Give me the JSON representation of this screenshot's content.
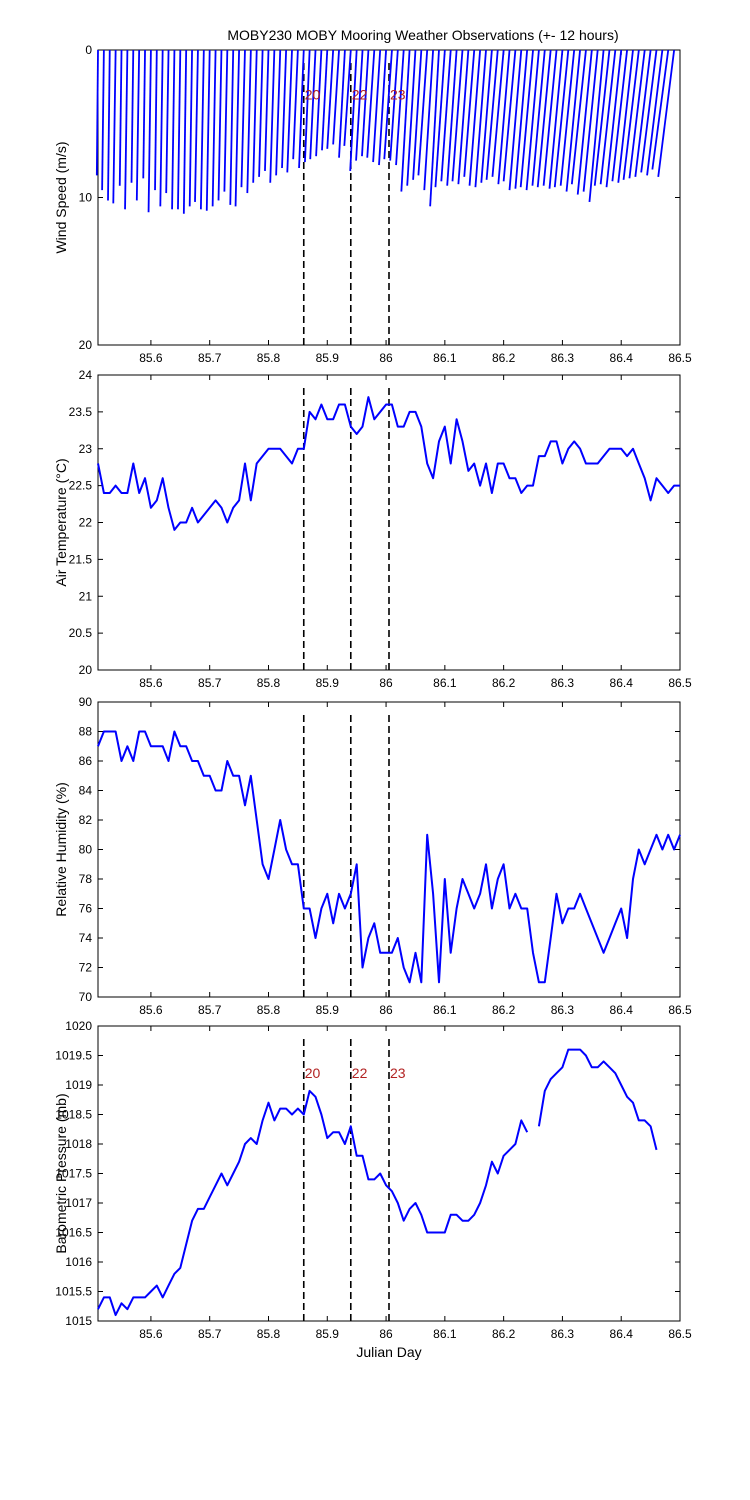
{
  "title": "MOBY230 MOBY Mooring Weather Observations (+- 12 hours)",
  "chart_data": [
    {
      "type": "line",
      "id": "wind",
      "ylabel": "Wind Speed (m/s)",
      "xlabel": "",
      "xlim": [
        85.51,
        86.5
      ],
      "ylim": [
        0,
        20
      ],
      "y_reversed": true,
      "yticks": [
        0,
        10,
        20
      ],
      "xticks": [
        85.6,
        85.7,
        85.8,
        85.9,
        86,
        86.1,
        86.2,
        86.3,
        86.4,
        86.5
      ],
      "vlines": [
        85.86,
        85.94,
        86.005
      ],
      "vline_labels": [
        "20",
        "22",
        "23"
      ],
      "label_y": 3,
      "series": [
        {
          "color": "#0000ff",
          "style": "wind-sticks",
          "x": [
            85.51,
            85.52,
            85.53,
            85.54,
            85.55,
            85.56,
            85.57,
            85.58,
            85.59,
            85.6,
            85.61,
            85.62,
            85.63,
            85.64,
            85.65,
            85.66,
            85.67,
            85.68,
            85.69,
            85.7,
            85.71,
            85.72,
            85.73,
            85.74,
            85.75,
            85.76,
            85.77,
            85.78,
            85.79,
            85.8,
            85.81,
            85.82,
            85.83,
            85.84,
            85.85,
            85.86,
            85.87,
            85.88,
            85.89,
            85.9,
            85.91,
            85.92,
            85.93,
            85.94,
            85.95,
            85.96,
            85.97,
            85.98,
            85.99,
            86.0,
            86.01,
            86.02,
            86.03,
            86.04,
            86.05,
            86.06,
            86.07,
            86.08,
            86.09,
            86.1,
            86.11,
            86.12,
            86.13,
            86.14,
            86.15,
            86.16,
            86.17,
            86.18,
            86.19,
            86.2,
            86.21,
            86.22,
            86.23,
            86.24,
            86.25,
            86.26,
            86.27,
            86.28,
            86.29,
            86.3,
            86.31,
            86.32,
            86.33,
            86.34,
            86.35,
            86.36,
            86.37,
            86.38,
            86.39,
            86.4,
            86.41,
            86.42,
            86.43,
            86.44,
            86.45,
            86.46,
            86.47,
            86.48,
            86.49,
            86.5
          ],
          "values": [
            8.5,
            9.5,
            10.2,
            10.4,
            9.2,
            10.8,
            9.0,
            10.2,
            8.7,
            11.0,
            9.5,
            10.6,
            9.7,
            10.8,
            10.8,
            11.1,
            10.6,
            10.3,
            10.8,
            10.9,
            10.6,
            10.2,
            9.6,
            10.5,
            10.6,
            9.3,
            9.7,
            9.0,
            8.6,
            8.2,
            9.0,
            8.5,
            8.0,
            8.3,
            7.4,
            8.0,
            7.6,
            7.4,
            7.2,
            6.8,
            6.7,
            6.4,
            7.3,
            6.5,
            8.2,
            7.5,
            7.2,
            7.3,
            7.6,
            7.8,
            7.4,
            7.5,
            7.8,
            9.6,
            9.2,
            8.8,
            8.5,
            9.5,
            10.6,
            9.3,
            8.9,
            9.2,
            8.9,
            9.1,
            8.6,
            9.2,
            9.3,
            9.0,
            8.8,
            8.6,
            9.1,
            8.9,
            9.5,
            9.4,
            9.3,
            9.5,
            9.2,
            9.3,
            9.2,
            9.4,
            9.3,
            9.2,
            9.6,
            9.1,
            9.8,
            9.6,
            10.3,
            9.2,
            9.1,
            9.3,
            8.9,
            9.0,
            8.8,
            8.7,
            8.6,
            8.3,
            8.5,
            8.1,
            8.6,
            0.0
          ],
          "dx": [
            -0.002,
            -0.003,
            -0.003,
            -0.004,
            -0.003,
            -0.004,
            -0.003,
            -0.004,
            -0.003,
            -0.004,
            -0.003,
            -0.004,
            -0.004,
            -0.004,
            -0.004,
            -0.004,
            -0.004,
            -0.005,
            -0.005,
            -0.005,
            -0.005,
            -0.005,
            -0.005,
            -0.005,
            -0.006,
            -0.006,
            -0.006,
            -0.006,
            -0.006,
            -0.006,
            -0.007,
            -0.007,
            -0.007,
            -0.008,
            -0.008,
            -0.008,
            -0.008,
            -0.009,
            -0.009,
            -0.009,
            -0.01,
            -0.01,
            -0.01,
            -0.011,
            -0.011,
            -0.011,
            -0.011,
            -0.012,
            -0.012,
            -0.012,
            -0.013,
            -0.013,
            -0.013,
            -0.014,
            -0.014,
            -0.014,
            -0.015,
            -0.015,
            -0.015,
            -0.016,
            -0.016,
            -0.016,
            -0.017,
            -0.017,
            -0.017,
            -0.018,
            -0.018,
            -0.018,
            -0.019,
            -0.019,
            -0.019,
            -0.02,
            -0.02,
            -0.02,
            -0.021,
            -0.021,
            -0.021,
            -0.022,
            -0.022,
            -0.022,
            -0.023,
            -0.023,
            -0.023,
            -0.024,
            -0.024,
            -0.024,
            -0.024,
            -0.025,
            -0.025,
            -0.025,
            -0.025,
            -0.025,
            -0.026,
            -0.026,
            -0.026,
            -0.026,
            -0.026,
            -0.027,
            -0.027,
            0.0
          ]
        }
      ]
    },
    {
      "type": "line",
      "id": "temp",
      "ylabel": "Air Temperature (°C)",
      "xlabel": "",
      "xlim": [
        85.51,
        86.5
      ],
      "ylim": [
        20,
        24
      ],
      "yticks": [
        20,
        20.5,
        21,
        21.5,
        22,
        22.5,
        23,
        23.5,
        24
      ],
      "xticks": [
        85.6,
        85.7,
        85.8,
        85.9,
        86,
        86.1,
        86.2,
        86.3,
        86.4,
        86.5
      ],
      "vlines": [
        85.86,
        85.94,
        86.005
      ],
      "series": [
        {
          "color": "#0000ff",
          "x": [
            85.51,
            85.52,
            85.53,
            85.54,
            85.55,
            85.56,
            85.57,
            85.58,
            85.59,
            85.6,
            85.61,
            85.62,
            85.63,
            85.64,
            85.65,
            85.66,
            85.67,
            85.68,
            85.69,
            85.7,
            85.71,
            85.72,
            85.73,
            85.74,
            85.75,
            85.76,
            85.77,
            85.78,
            85.79,
            85.8,
            85.81,
            85.82,
            85.83,
            85.84,
            85.85,
            85.86,
            85.87,
            85.88,
            85.89,
            85.9,
            85.91,
            85.92,
            85.93,
            85.94,
            85.95,
            85.96,
            85.97,
            85.98,
            85.99,
            86.0,
            86.01,
            86.02,
            86.03,
            86.04,
            86.05,
            86.06,
            86.07,
            86.08,
            86.09,
            86.1,
            86.11,
            86.12,
            86.13,
            86.14,
            86.15,
            86.16,
            86.17,
            86.18,
            86.19,
            86.2,
            86.21,
            86.22,
            86.23,
            86.24,
            86.25,
            86.26,
            86.27,
            86.28,
            86.29,
            86.3,
            86.31,
            86.32,
            86.33,
            86.34,
            86.35,
            86.36,
            86.37,
            86.38,
            86.39,
            86.4,
            86.41,
            86.42,
            86.43,
            86.44,
            86.45,
            86.46,
            86.47,
            86.48,
            86.49,
            86.5
          ],
          "values": [
            22.8,
            22.4,
            22.4,
            22.5,
            22.4,
            22.4,
            22.8,
            22.4,
            22.6,
            22.2,
            22.3,
            22.6,
            22.2,
            21.9,
            22.0,
            22.0,
            22.2,
            22.0,
            22.1,
            22.2,
            22.3,
            22.2,
            22.0,
            22.2,
            22.3,
            22.8,
            22.3,
            22.8,
            22.9,
            23.0,
            23.0,
            23.0,
            22.9,
            22.8,
            23.0,
            23.0,
            23.5,
            23.4,
            23.6,
            23.4,
            23.4,
            23.6,
            23.6,
            23.3,
            23.2,
            23.3,
            23.7,
            23.4,
            23.5,
            23.6,
            23.6,
            23.3,
            23.3,
            23.5,
            23.5,
            23.3,
            22.8,
            22.6,
            23.1,
            23.3,
            22.8,
            23.4,
            23.1,
            22.7,
            22.8,
            22.5,
            22.8,
            22.4,
            22.8,
            22.8,
            22.6,
            22.6,
            22.4,
            22.5,
            22.5,
            22.9,
            22.9,
            23.1,
            23.1,
            22.8,
            23.0,
            23.1,
            23.0,
            22.8,
            22.8,
            22.8,
            22.9,
            23.0,
            23.0,
            23.0,
            22.9,
            23.0,
            22.8,
            22.6,
            22.3,
            22.6,
            22.5,
            22.4,
            22.5,
            22.5
          ]
        }
      ]
    },
    {
      "type": "line",
      "id": "rh",
      "ylabel": "Relative Humidity (%)",
      "xlabel": "",
      "xlim": [
        85.51,
        86.5
      ],
      "ylim": [
        70,
        90
      ],
      "yticks": [
        70,
        72,
        74,
        76,
        78,
        80,
        82,
        84,
        86,
        88,
        90
      ],
      "xticks": [
        85.6,
        85.7,
        85.8,
        85.9,
        86,
        86.1,
        86.2,
        86.3,
        86.4,
        86.5
      ],
      "vlines": [
        85.86,
        85.94,
        86.005
      ],
      "series": [
        {
          "color": "#0000ff",
          "x": [
            85.51,
            85.52,
            85.53,
            85.54,
            85.55,
            85.56,
            85.57,
            85.58,
            85.59,
            85.6,
            85.61,
            85.62,
            85.63,
            85.64,
            85.65,
            85.66,
            85.67,
            85.68,
            85.69,
            85.7,
            85.71,
            85.72,
            85.73,
            85.74,
            85.75,
            85.76,
            85.77,
            85.78,
            85.79,
            85.8,
            85.81,
            85.82,
            85.83,
            85.84,
            85.85,
            85.86,
            85.87,
            85.88,
            85.89,
            85.9,
            85.91,
            85.92,
            85.93,
            85.94,
            85.95,
            85.96,
            85.97,
            85.98,
            85.99,
            86.0,
            86.01,
            86.02,
            86.03,
            86.04,
            86.05,
            86.06,
            86.07,
            86.08,
            86.09,
            86.1,
            86.11,
            86.12,
            86.13,
            86.14,
            86.15,
            86.16,
            86.17,
            86.18,
            86.19,
            86.2,
            86.21,
            86.22,
            86.23,
            86.24,
            86.25,
            86.26,
            86.27,
            86.28,
            86.29,
            86.3,
            86.31,
            86.32,
            86.33,
            86.34,
            86.35,
            86.36,
            86.37,
            86.38,
            86.39,
            86.4,
            86.41,
            86.42,
            86.43,
            86.44,
            86.45,
            86.46,
            86.47,
            86.48,
            86.49,
            86.5
          ],
          "values": [
            87,
            88,
            88,
            88,
            86,
            87,
            86,
            88,
            88,
            87,
            87,
            87,
            86,
            88,
            87,
            87,
            86,
            86,
            85,
            85,
            84,
            84,
            86,
            85,
            85,
            83,
            85,
            82,
            79,
            78,
            80,
            82,
            80,
            79,
            79,
            76,
            76,
            74,
            76,
            77,
            75,
            77,
            76,
            77,
            79,
            72,
            74,
            75,
            73,
            73,
            73,
            74,
            72,
            71,
            73,
            71,
            81,
            77,
            71,
            78,
            73,
            76,
            78,
            77,
            76,
            77,
            79,
            76,
            78,
            79,
            76,
            77,
            76,
            76,
            73,
            71,
            71,
            74,
            77,
            75,
            76,
            76,
            77,
            76,
            75,
            74,
            73,
            74,
            75,
            76,
            74,
            78,
            80,
            79,
            80,
            81,
            80,
            81,
            80,
            81
          ]
        }
      ]
    },
    {
      "type": "line",
      "id": "pressure",
      "ylabel": "Barometric Pressure (mb)",
      "xlabel": "Julian Day",
      "xlim": [
        85.51,
        86.5
      ],
      "ylim": [
        1015,
        1020
      ],
      "yticks": [
        1015,
        1015.5,
        1016,
        1016.5,
        1017,
        1017.5,
        1018,
        1018.5,
        1019,
        1019.5,
        1020
      ],
      "xticks": [
        85.6,
        85.7,
        85.8,
        85.9,
        86,
        86.1,
        86.2,
        86.3,
        86.4,
        86.5
      ],
      "vlines": [
        85.86,
        85.94,
        86.005
      ],
      "vline_labels": [
        "20",
        "22",
        "23"
      ],
      "label_y": 1019.2,
      "series": [
        {
          "color": "#0000ff",
          "x": [
            85.51,
            85.52,
            85.53,
            85.54,
            85.55,
            85.56,
            85.57,
            85.58,
            85.59,
            85.6,
            85.61,
            85.62,
            85.63,
            85.64,
            85.65,
            85.66,
            85.67,
            85.68,
            85.69,
            85.7,
            85.71,
            85.72,
            85.73,
            85.74,
            85.75,
            85.76,
            85.77,
            85.78,
            85.79,
            85.8,
            85.81,
            85.82,
            85.83,
            85.84,
            85.85,
            85.86,
            85.87,
            85.88,
            85.89,
            85.9,
            85.91,
            85.92,
            85.93,
            85.94,
            85.95,
            85.96,
            85.97,
            85.98,
            85.99,
            86.0,
            86.01,
            86.02,
            86.03,
            86.04,
            86.05,
            86.06,
            86.07,
            86.08,
            86.09,
            86.1,
            86.11,
            86.12,
            86.13,
            86.14,
            86.15,
            86.16,
            86.17,
            86.18,
            86.19,
            86.2,
            86.21,
            86.22,
            86.23,
            86.24,
            86.25,
            86.26,
            86.27,
            86.28,
            86.29,
            86.3,
            86.31,
            86.32,
            86.33,
            86.34,
            86.35,
            86.36,
            86.37,
            86.38,
            86.39,
            86.4,
            86.41,
            86.42,
            86.43,
            86.44,
            86.45,
            86.46,
            86.47,
            86.48,
            86.49,
            86.5
          ],
          "values": [
            1015.2,
            1015.4,
            1015.4,
            1015.1,
            1015.3,
            1015.2,
            1015.4,
            1015.4,
            1015.4,
            1015.5,
            1015.6,
            1015.4,
            1015.6,
            1015.8,
            1015.9,
            1016.3,
            1016.7,
            1016.9,
            1016.9,
            1017.1,
            1017.3,
            1017.5,
            1017.3,
            1017.5,
            1017.7,
            1018.0,
            1018.1,
            1018.0,
            1018.4,
            1018.7,
            1018.4,
            1018.6,
            1018.6,
            1018.5,
            1018.6,
            1018.5,
            1018.9,
            1018.8,
            1018.5,
            1018.1,
            1018.2,
            1018.2,
            1018.0,
            1018.3,
            1017.8,
            1017.8,
            1017.4,
            1017.4,
            1017.5,
            1017.3,
            1017.2,
            1017.0,
            1016.7,
            1016.9,
            1017.0,
            1016.8,
            1016.5,
            1016.5,
            1016.5,
            1016.5,
            1016.8,
            1016.8,
            1016.7,
            1016.7,
            1016.8,
            1017.0,
            1017.3,
            1017.7,
            1017.5,
            1017.8,
            1017.9,
            1018.0,
            1018.4,
            1018.2,
            null,
            1018.3,
            1018.9,
            1019.1,
            1019.2,
            1019.3,
            1019.6,
            1019.6,
            1019.6,
            1019.5,
            1019.3,
            1019.3,
            1019.4,
            1019.3,
            1019.2,
            1019.0,
            1018.8,
            1018.7,
            1018.4,
            1018.4,
            1018.3,
            1017.9,
            null,
            null,
            null,
            null
          ]
        }
      ]
    }
  ]
}
